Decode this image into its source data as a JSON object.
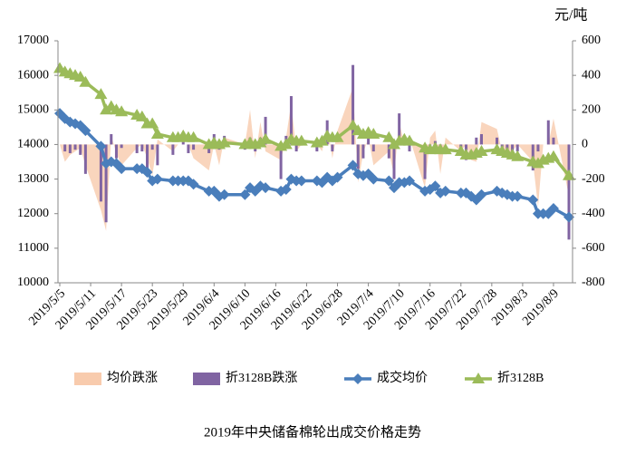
{
  "chart_data": {
    "type": "combo",
    "title": "2019年中央储备棉轮出成交价格走势",
    "y2_label": "元/吨",
    "x": [
      "2019/5/5",
      "2019/5/6",
      "2019/5/7",
      "2019/5/8",
      "2019/5/9",
      "2019/5/10",
      "2019/5/13",
      "2019/5/14",
      "2019/5/15",
      "2019/5/16",
      "2019/5/17",
      "2019/5/20",
      "2019/5/21",
      "2019/5/22",
      "2019/5/23",
      "2019/5/24",
      "2019/5/27",
      "2019/5/28",
      "2019/5/29",
      "2019/5/30",
      "2019/5/31",
      "2019/6/3",
      "2019/6/4",
      "2019/6/5",
      "2019/6/6",
      "2019/6/10",
      "2019/6/11",
      "2019/6/12",
      "2019/6/13",
      "2019/6/14",
      "2019/6/17",
      "2019/6/18",
      "2019/6/19",
      "2019/6/20",
      "2019/6/21",
      "2019/6/24",
      "2019/6/25",
      "2019/6/26",
      "2019/6/27",
      "2019/6/28",
      "2019/7/1",
      "2019/7/2",
      "2019/7/3",
      "2019/7/4",
      "2019/7/5",
      "2019/7/8",
      "2019/7/9",
      "2019/7/10",
      "2019/7/11",
      "2019/7/12",
      "2019/7/15",
      "2019/7/16",
      "2019/7/17",
      "2019/7/18",
      "2019/7/19",
      "2019/7/22",
      "2019/7/23",
      "2019/7/24",
      "2019/7/25",
      "2019/7/26",
      "2019/7/29",
      "2019/7/30",
      "2019/7/31",
      "2019/8/1",
      "2019/8/2",
      "2019/8/5",
      "2019/8/6",
      "2019/8/7",
      "2019/8/8",
      "2019/8/9",
      "2019/8/12"
    ],
    "xticks": [
      "2019/5/5",
      "2019/5/11",
      "2019/5/17",
      "2019/5/23",
      "2019/5/29",
      "2019/6/4",
      "2019/6/10",
      "2019/6/16",
      "2019/6/22",
      "2019/6/28",
      "2019/7/4",
      "2019/7/10",
      "2019/7/16",
      "2019/7/22",
      "2019/7/28",
      "2019/8/3",
      "2019/8/9"
    ],
    "ylim": [
      10000,
      17000
    ],
    "yticks": [
      10000,
      11000,
      12000,
      13000,
      14000,
      15000,
      16000,
      17000
    ],
    "y2lim": [
      -800,
      600
    ],
    "y2ticks": [
      -800,
      -600,
      -400,
      -200,
      0,
      200,
      400,
      600
    ],
    "series": [
      {
        "name": "均价跌涨",
        "type": "area",
        "axis": "y2",
        "color": "#f8cbad",
        "values": [
          0,
          -100,
          -60,
          -40,
          -20,
          -120,
          -380,
          -500,
          50,
          -50,
          -120,
          -20,
          0,
          -80,
          -180,
          30,
          -40,
          0,
          0,
          0,
          -80,
          -150,
          0,
          -120,
          40,
          0,
          200,
          -80,
          130,
          -40,
          -90,
          40,
          240,
          -40,
          0,
          0,
          -40,
          120,
          -80,
          80,
          330,
          -220,
          -50,
          40,
          -120,
          -40,
          -180,
          130,
          0,
          40,
          -250,
          40,
          80,
          -170,
          40,
          -40,
          0,
          -90,
          -100,
          130,
          90,
          -40,
          -50,
          -40,
          0,
          -100,
          -360,
          0,
          0,
          150,
          -300
        ]
      },
      {
        "name": "折3128B跌涨",
        "type": "bar",
        "axis": "y2",
        "color": "#8064a2",
        "values": [
          0,
          -40,
          -50,
          -30,
          -60,
          -170,
          -330,
          -450,
          60,
          -80,
          -20,
          -50,
          -40,
          -140,
          -30,
          -120,
          -60,
          0,
          30,
          -50,
          -30,
          -50,
          60,
          -30,
          50,
          -30,
          40,
          -40,
          40,
          160,
          -200,
          50,
          280,
          -40,
          0,
          -40,
          40,
          140,
          -40,
          0,
          460,
          -140,
          -80,
          40,
          -40,
          -80,
          -200,
          180,
          40,
          -40,
          -200,
          -30,
          20,
          -40,
          0,
          -40,
          -90,
          0,
          40,
          60,
          40,
          -40,
          -40,
          -40,
          -40,
          -150,
          -40,
          0,
          140,
          40,
          -550
        ]
      },
      {
        "name": "成交均价",
        "type": "line",
        "marker": "diamond",
        "color": "#4a7ebb",
        "values": [
          14900,
          14750,
          14650,
          14600,
          14550,
          14400,
          13950,
          13450,
          13500,
          13450,
          13300,
          13300,
          13300,
          13200,
          12950,
          13000,
          12950,
          12950,
          12950,
          12950,
          12850,
          12650,
          12650,
          12500,
          12550,
          12550,
          12750,
          12650,
          12800,
          12750,
          12650,
          12700,
          13000,
          12950,
          12950,
          12950,
          12900,
          13050,
          12950,
          13050,
          13400,
          13150,
          13100,
          13150,
          13000,
          12950,
          12750,
          12900,
          12900,
          12950,
          12650,
          12700,
          12800,
          12600,
          12650,
          12600,
          12600,
          12500,
          12400,
          12550,
          12650,
          12600,
          12550,
          12500,
          12500,
          12400,
          12000,
          12000,
          12000,
          12150,
          11900
        ]
      },
      {
        "name": "折3128B",
        "type": "line",
        "marker": "triangle",
        "color": "#9bbb59",
        "values": [
          16200,
          16100,
          16050,
          16000,
          15950,
          15800,
          15450,
          15000,
          15100,
          15000,
          14950,
          14850,
          14800,
          14600,
          14600,
          14300,
          14200,
          14200,
          14250,
          14200,
          14200,
          14000,
          14050,
          14000,
          14050,
          14000,
          14050,
          14000,
          14050,
          14150,
          13950,
          14000,
          14150,
          14100,
          14100,
          14050,
          14100,
          14250,
          14200,
          14200,
          14550,
          14400,
          14300,
          14350,
          14300,
          14200,
          14000,
          14100,
          14150,
          14100,
          13900,
          13850,
          13900,
          13850,
          13850,
          13800,
          13700,
          13700,
          13750,
          13800,
          13850,
          13800,
          13750,
          13700,
          13650,
          13500,
          13450,
          13550,
          13600,
          13650,
          13100
        ]
      }
    ]
  }
}
